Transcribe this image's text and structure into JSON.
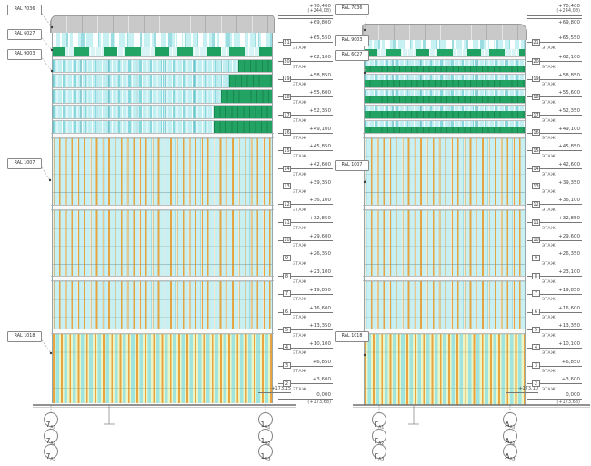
{
  "meta": {
    "floor_suffix": "ЭТАЖ"
  },
  "levels": [
    {
      "value": "+70,400",
      "abs": "(+244,08)",
      "style": "top"
    },
    {
      "value": "+69,800",
      "style": "below"
    },
    {
      "value": "+65,550",
      "floor": "21"
    },
    {
      "value": "+62,100",
      "floor": "20"
    },
    {
      "value": "+58,850",
      "floor": "19"
    },
    {
      "value": "+55,600",
      "floor": "18"
    },
    {
      "value": "+52,350",
      "floor": "17"
    },
    {
      "value": "+49,100",
      "floor": "16"
    },
    {
      "value": "+45,850",
      "floor": "15"
    },
    {
      "value": "+42,600",
      "floor": "14"
    },
    {
      "value": "+39,350",
      "floor": "13"
    },
    {
      "value": "+36,100",
      "floor": "12"
    },
    {
      "value": "+32,850",
      "floor": "11"
    },
    {
      "value": "+29,600",
      "floor": "10"
    },
    {
      "value": "+26,350",
      "floor": "9"
    },
    {
      "value": "+23,100",
      "floor": "8"
    },
    {
      "value": "+19,850",
      "floor": "7"
    },
    {
      "value": "+16,600",
      "floor": "6"
    },
    {
      "value": "+13,350",
      "floor": "5"
    },
    {
      "value": "+10,100",
      "floor": "4"
    },
    {
      "value": "+6,850",
      "floor": "3"
    },
    {
      "value": "+3,600",
      "floor": "2"
    },
    {
      "value": "0,000",
      "abs": "(+173,68)",
      "style": "bottom"
    }
  ],
  "ground_marks": {
    "left": "+173,15",
    "right": "+173,10"
  },
  "left_elevation": {
    "ral_labels": [
      "RAL 7036",
      "RAL 6027",
      "RAL 9003",
      "RAL 1007",
      "RAL 1018"
    ],
    "axis_left": {
      "main": "7",
      "subs": [
        "А1",
        "А2",
        "А3"
      ]
    },
    "axis_right": {
      "main": "1",
      "subs": [
        "А1",
        "А2",
        "А3"
      ]
    }
  },
  "right_elevation": {
    "ral_labels": [
      "RAL 7036",
      "RAL 9003",
      "RAL 6027",
      "RAL 1007",
      "RAL 1018"
    ],
    "axis_left": {
      "main": "Г",
      "subs": [
        "А1",
        "А2",
        "А3"
      ]
    },
    "axis_right": {
      "main": "А",
      "subs": [
        "А1",
        "А2",
        "А3"
      ]
    }
  },
  "palette": {
    "glass_cyan": "#c0eef1",
    "spandrel_green": "#22a263",
    "crown_grey": "#c9c9c9",
    "mullion_orange": "#e7a039",
    "podium_yellow": "#edf5c5"
  }
}
